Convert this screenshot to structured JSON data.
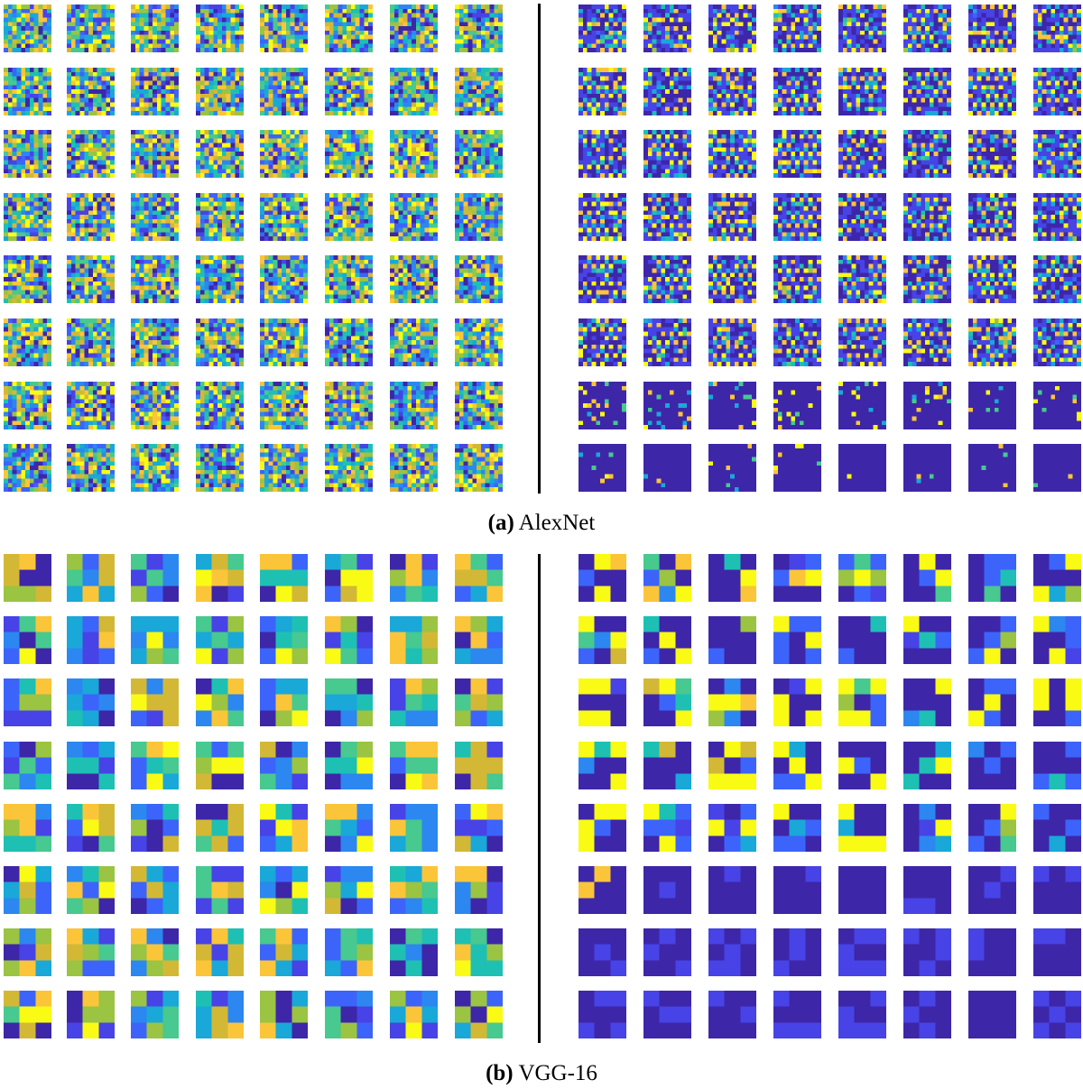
{
  "figure": {
    "panels": [
      {
        "id": "a",
        "letter": "(a)",
        "caption": "AlexNet",
        "kernel_size": 11,
        "grid_rows": 8,
        "grid_cols": 8,
        "groups": [
          {
            "side": "left",
            "style": "random_noise"
          },
          {
            "side": "right",
            "style": "structured_then_sparse"
          }
        ]
      },
      {
        "id": "b",
        "letter": "(b)",
        "caption": "VGG-16",
        "kernel_size": 3,
        "grid_rows": 8,
        "grid_cols": 8,
        "groups": [
          {
            "side": "left",
            "style": "random_noise"
          },
          {
            "side": "right",
            "style": "structured_then_uniform"
          }
        ]
      }
    ],
    "colormap": [
      "#3e26a8",
      "#4743e6",
      "#3c64fa",
      "#2c87f0",
      "#19a8d8",
      "#1ec0b4",
      "#47c98f",
      "#9ac442",
      "#d3b836",
      "#fbc53a",
      "#f9fb15"
    ]
  }
}
